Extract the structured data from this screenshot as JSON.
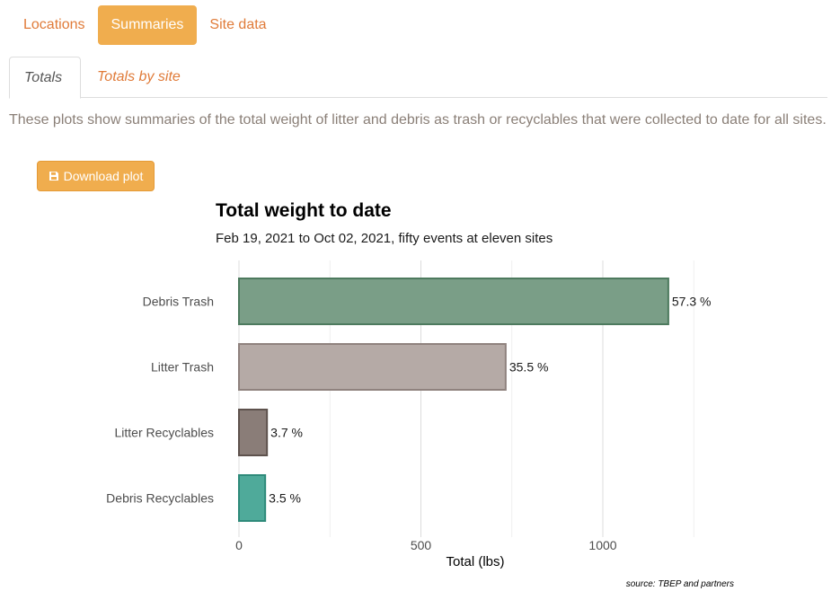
{
  "nav": {
    "pills": [
      {
        "label": "Locations",
        "active": false
      },
      {
        "label": "Summaries",
        "active": true
      },
      {
        "label": "Site data",
        "active": false
      }
    ],
    "tabs": [
      {
        "label": "Totals",
        "active": true
      },
      {
        "label": "Totals by site",
        "active": false
      }
    ]
  },
  "description": "These plots show summaries of the total weight of litter and debris as trash or recyclables that were collected to date for all sites.",
  "download_button": {
    "label": "Download plot",
    "icon": "save-icon"
  },
  "chart_data": {
    "type": "bar",
    "orientation": "horizontal",
    "title": "Total weight to date",
    "subtitle": "Feb 19, 2021 to Oct 02, 2021, fifty events at eleven sites",
    "xlabel": "Total (lbs)",
    "ylabel": "",
    "caption": "source: TBEP and partners",
    "categories": [
      "Debris Trash",
      "Litter Trash",
      "Litter Recyclables",
      "Debris Recyclables"
    ],
    "values": [
      1180,
      733,
      77,
      72
    ],
    "percent_labels": [
      "57.3 %",
      "35.5 %",
      "3.7 %",
      "3.5 %"
    ],
    "colors": [
      "#7a9e87",
      "#b5aaa6",
      "#8a7d78",
      "#4faa9a"
    ],
    "border_colors": [
      "#4d7a5e",
      "#8f827e",
      "#5e524d",
      "#2e8a7a"
    ],
    "xlim": [
      0,
      1250
    ],
    "xticks": [
      0,
      500,
      1000
    ],
    "xtick_labels": [
      "0",
      "500",
      "1000"
    ],
    "grid": true,
    "legend": "none"
  }
}
